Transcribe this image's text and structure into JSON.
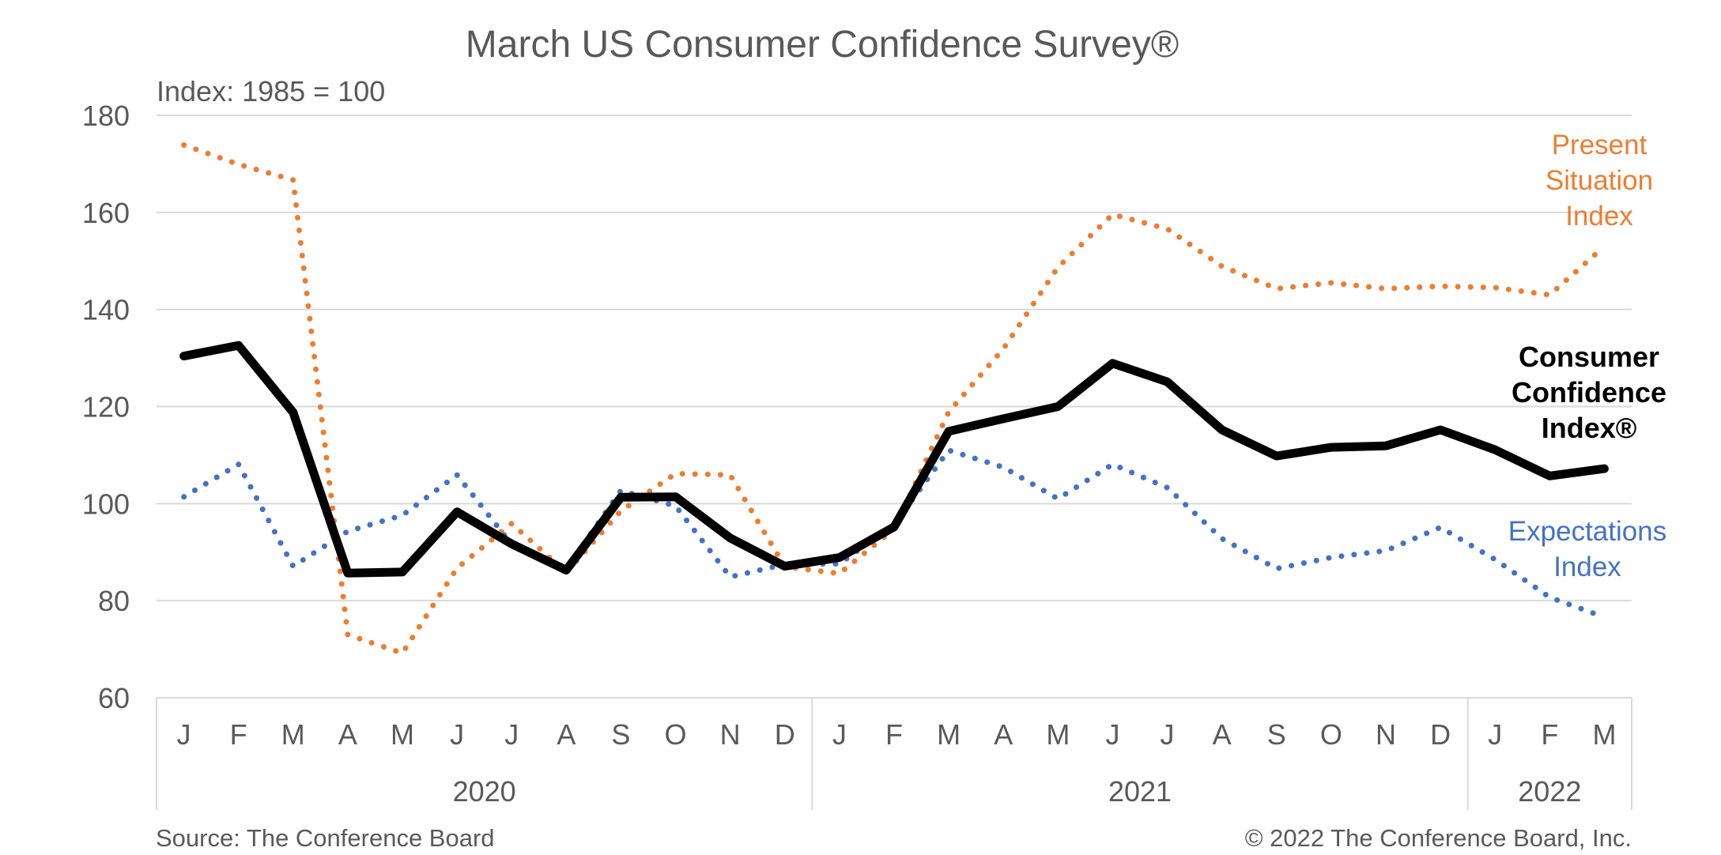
{
  "chart_data": {
    "type": "line",
    "title": "March US Consumer Confidence Survey®",
    "subtitle": "Index: 1985 = 100",
    "ylim": [
      60,
      180
    ],
    "yticks": [
      "180",
      "160",
      "140",
      "120",
      "100",
      "80",
      "60"
    ],
    "grid": true,
    "months": [
      "J",
      "F",
      "M",
      "A",
      "M",
      "J",
      "J",
      "A",
      "S",
      "O",
      "N",
      "D",
      "J",
      "F",
      "M",
      "A",
      "M",
      "J",
      "J",
      "A",
      "S",
      "O",
      "N",
      "D",
      "J",
      "F",
      "M"
    ],
    "years": [
      {
        "label": "2020",
        "span": 12
      },
      {
        "label": "2021",
        "span": 12
      },
      {
        "label": "2022",
        "span": 3
      }
    ],
    "series": [
      {
        "name": "Consumer Confidence Index®",
        "color": "#000000",
        "style": "solid",
        "label_lines": [
          "Consumer",
          "Confidence",
          "Index®"
        ],
        "values": [
          130.4,
          132.6,
          118.8,
          85.7,
          85.9,
          98.3,
          91.7,
          86.3,
          101.3,
          101.4,
          92.9,
          87.1,
          88.9,
          95.2,
          114.9,
          117.5,
          120.0,
          128.9,
          125.1,
          115.2,
          109.8,
          111.6,
          111.9,
          115.2,
          111.1,
          105.7,
          107.2
        ]
      },
      {
        "name": "Present Situation Index",
        "color": "#ED7D31",
        "style": "dotted",
        "label_lines": [
          "Present",
          "Situation",
          "Index"
        ],
        "values": [
          173.9,
          169.9,
          166.7,
          73.0,
          69.2,
          86.7,
          95.9,
          85.8,
          98.5,
          106.2,
          105.9,
          87.0,
          85.6,
          94.8,
          118.9,
          131.9,
          148.7,
          159.6,
          156.6,
          148.9,
          144.3,
          145.5,
          144.3,
          144.8,
          144.5,
          143.0,
          153.0
        ]
      },
      {
        "name": "Expectations Index",
        "color": "#4472C4",
        "style": "dotted",
        "label_lines": [
          "Expectations",
          "Index"
        ],
        "values": [
          101.4,
          108.1,
          87.1,
          94.3,
          97.6,
          105.9,
          91.6,
          86.6,
          102.7,
          99.5,
          84.9,
          87.5,
          87.6,
          95.7,
          111.0,
          107.5,
          101.0,
          108.1,
          103.3,
          92.8,
          86.6,
          88.9,
          90.3,
          95.1,
          88.5,
          80.7,
          76.6
        ]
      }
    ]
  },
  "footer": {
    "source": "Source: The Conference Board",
    "copyright": "© 2022 The Conference Board, Inc."
  }
}
